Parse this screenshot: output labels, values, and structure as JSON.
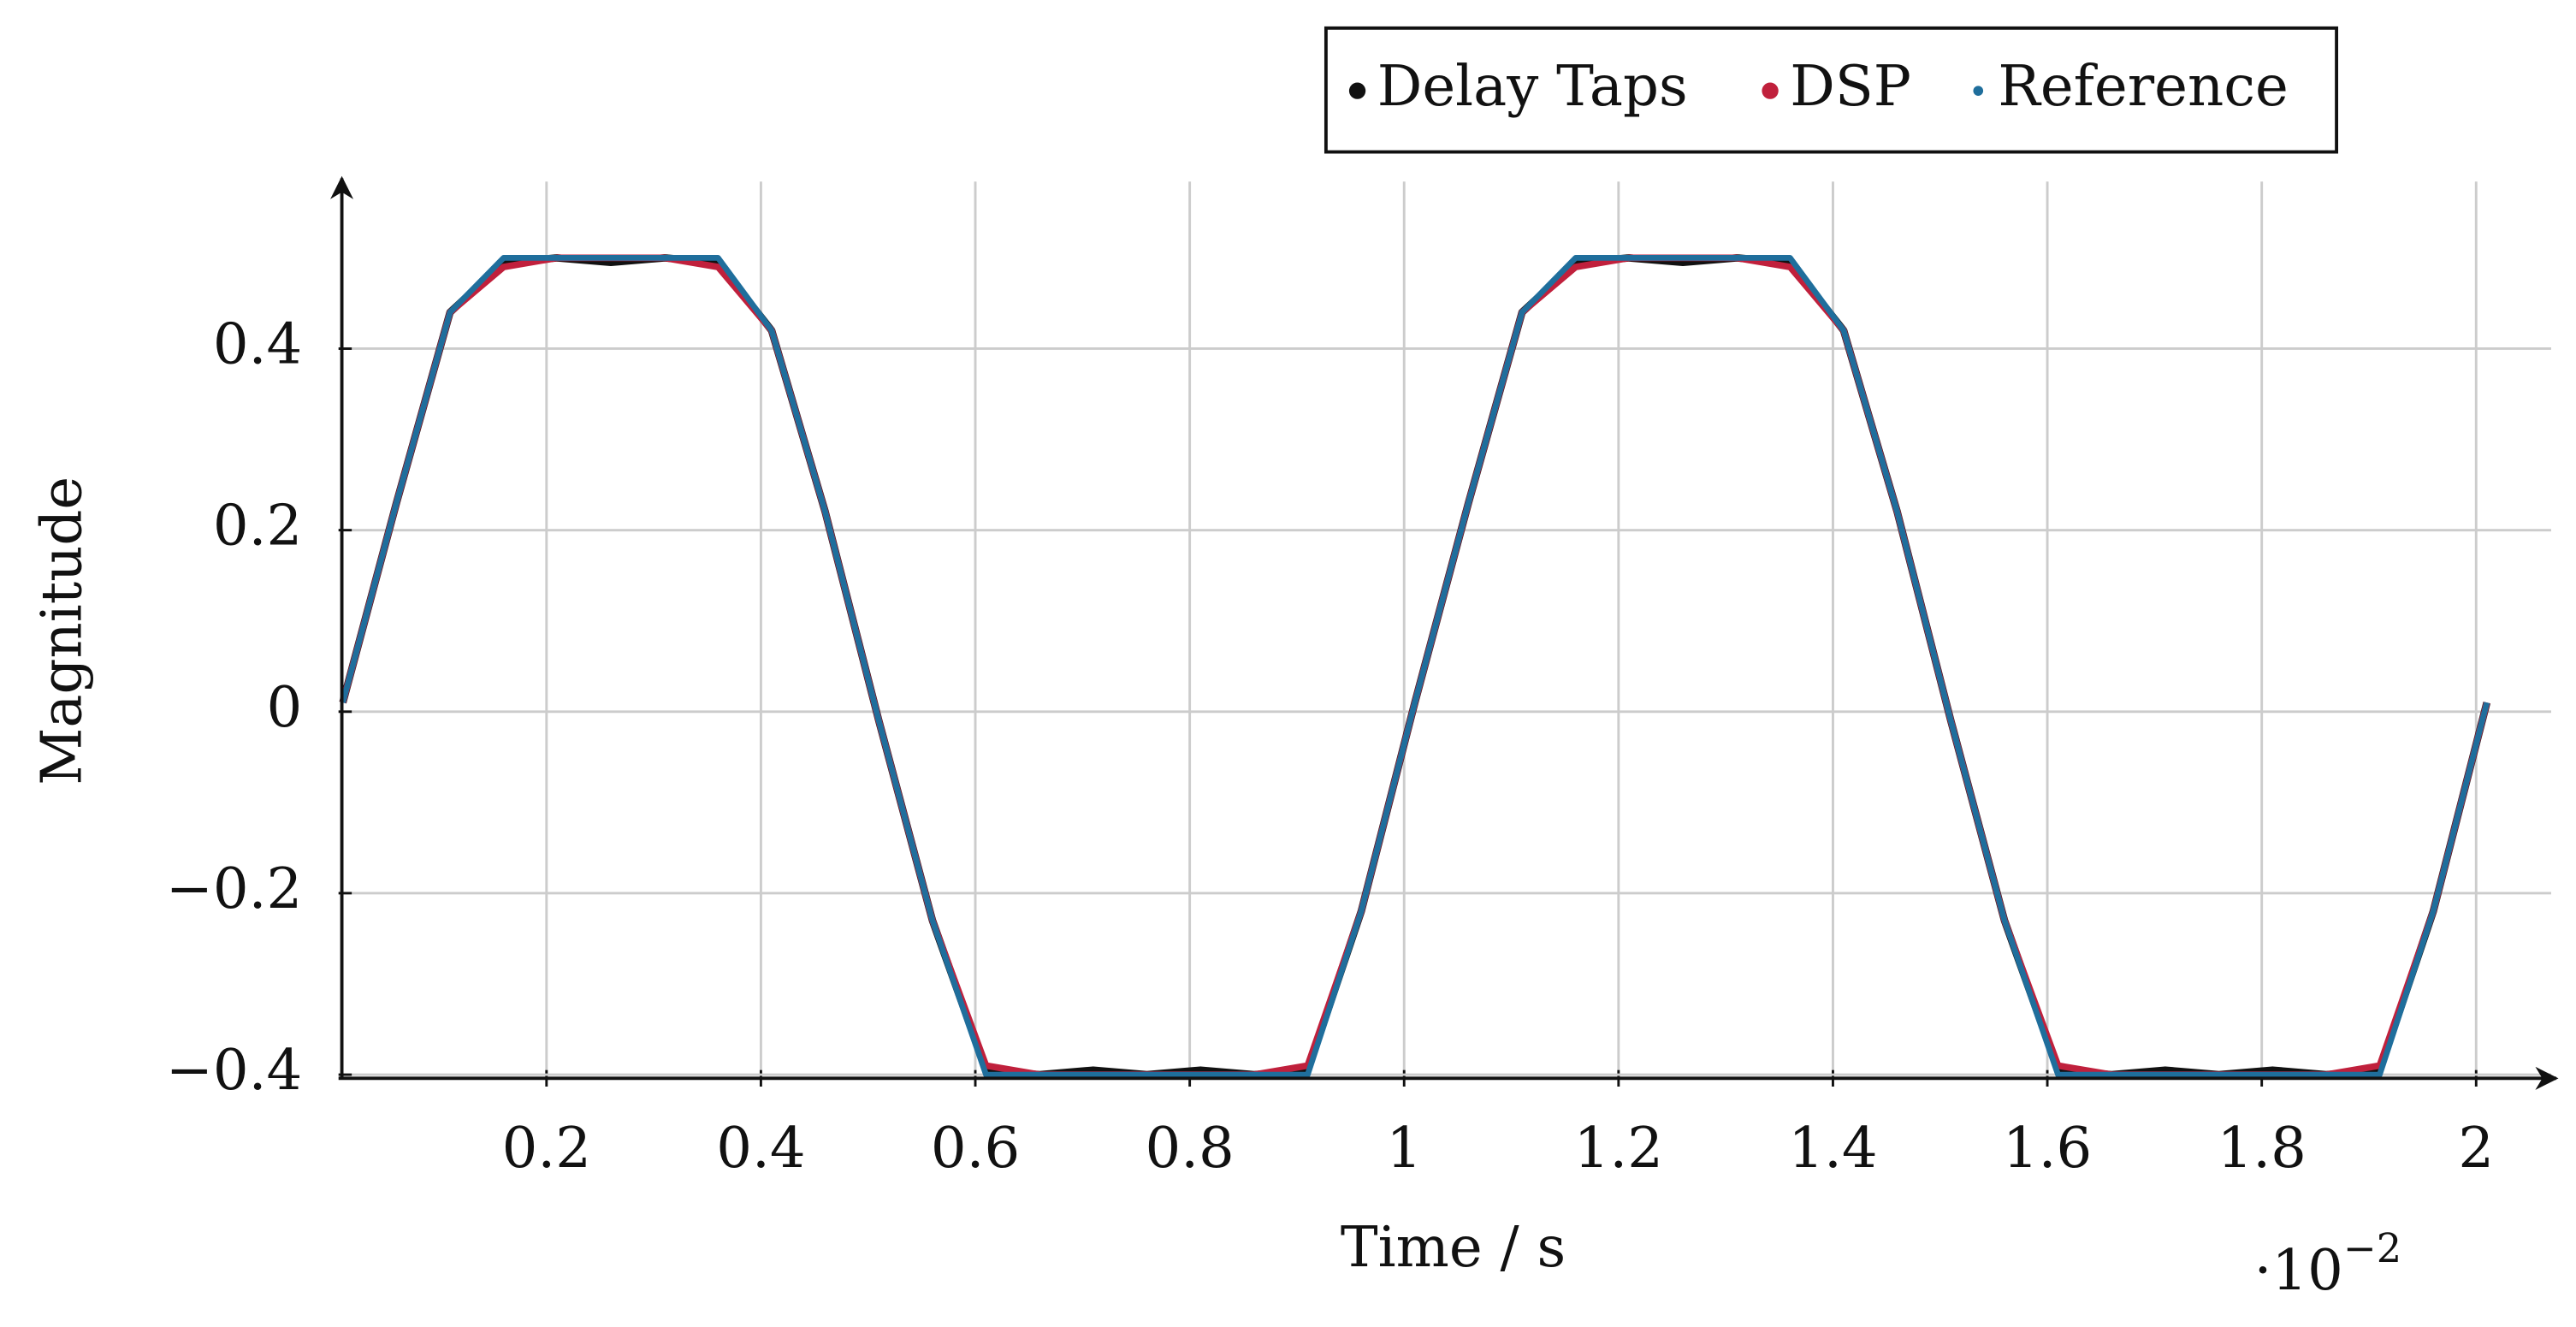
{
  "chart_data": {
    "type": "line",
    "x_label": "Time / s",
    "y_label": "Magnitude",
    "x_scale_label": {
      "base": "·10",
      "exponent": "−2"
    },
    "x": [
      0.01,
      0.06,
      0.11,
      0.16,
      0.21,
      0.26,
      0.31,
      0.36,
      0.41,
      0.46,
      0.51,
      0.56,
      0.61,
      0.66,
      0.71,
      0.76,
      0.81,
      0.86,
      0.91,
      0.96,
      1.01,
      1.06,
      1.11,
      1.16,
      1.21,
      1.26,
      1.31,
      1.36,
      1.41,
      1.46,
      1.51,
      1.56,
      1.61,
      1.66,
      1.71,
      1.76,
      1.81,
      1.86,
      1.91,
      1.96,
      2.01
    ],
    "series": [
      {
        "name": "Delay Taps",
        "color": "#111111",
        "values": [
          0.01,
          0.23,
          0.44,
          0.495,
          0.5,
          0.495,
          0.5,
          0.495,
          0.42,
          0.22,
          -0.01,
          -0.23,
          -0.395,
          -0.4,
          -0.395,
          -0.4,
          -0.395,
          -0.4,
          -0.395,
          -0.22,
          0.01,
          0.23,
          0.44,
          0.495,
          0.5,
          0.495,
          0.5,
          0.495,
          0.42,
          0.22,
          -0.01,
          -0.23,
          -0.395,
          -0.4,
          -0.395,
          -0.4,
          -0.395,
          -0.4,
          -0.395,
          -0.22,
          0.01
        ]
      },
      {
        "name": "DSP",
        "color": "#c0203c",
        "values": [
          0.01,
          0.23,
          0.44,
          0.49,
          0.5,
          0.5,
          0.5,
          0.49,
          0.42,
          0.22,
          -0.01,
          -0.23,
          -0.39,
          -0.4,
          -0.4,
          -0.4,
          -0.4,
          -0.4,
          -0.39,
          -0.22,
          0.01,
          0.23,
          0.44,
          0.49,
          0.5,
          0.5,
          0.5,
          0.49,
          0.42,
          0.22,
          -0.01,
          -0.23,
          -0.39,
          -0.4,
          -0.4,
          -0.4,
          -0.4,
          -0.4,
          -0.39,
          -0.22,
          0.01
        ]
      },
      {
        "name": "Reference",
        "color": "#1f6e9c",
        "values": [
          0.01,
          0.23,
          0.44,
          0.5,
          0.5,
          0.5,
          0.5,
          0.5,
          0.42,
          0.22,
          -0.01,
          -0.23,
          -0.4,
          -0.4,
          -0.4,
          -0.4,
          -0.4,
          -0.4,
          -0.4,
          -0.22,
          0.01,
          0.23,
          0.44,
          0.5,
          0.5,
          0.5,
          0.5,
          0.5,
          0.42,
          0.22,
          -0.01,
          -0.23,
          -0.4,
          -0.4,
          -0.4,
          -0.4,
          -0.4,
          -0.4,
          -0.4,
          -0.22,
          0.01
        ]
      }
    ],
    "xlim": [
      0.006,
      2.07
    ],
    "ylim": [
      -0.404,
      0.584
    ],
    "xticks": [
      0.2,
      0.4,
      0.6,
      0.8,
      1,
      1.2,
      1.4,
      1.6,
      1.8,
      2
    ],
    "yticks": [
      {
        "value": -0.4,
        "label": "−0.4"
      },
      {
        "value": -0.2,
        "label": "−0.2"
      },
      0,
      0.2,
      0.4
    ],
    "grid": true,
    "legend": "top"
  }
}
